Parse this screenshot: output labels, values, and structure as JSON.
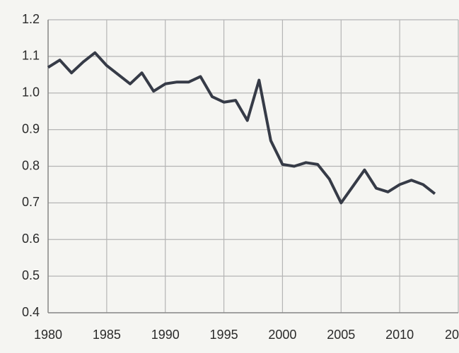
{
  "chart_data": {
    "type": "line",
    "x": [
      1980,
      1981,
      1982,
      1983,
      1984,
      1985,
      1986,
      1987,
      1988,
      1989,
      1990,
      1991,
      1992,
      1993,
      1994,
      1995,
      1996,
      1997,
      1998,
      1999,
      2000,
      2001,
      2002,
      2003,
      2004,
      2005,
      2006,
      2007,
      2008,
      2009,
      2010,
      2011,
      2012,
      2013
    ],
    "values": [
      1.07,
      1.09,
      1.055,
      1.085,
      1.11,
      1.075,
      1.05,
      1.025,
      1.055,
      1.005,
      1.025,
      1.03,
      1.03,
      1.045,
      0.99,
      0.975,
      0.98,
      0.925,
      1.035,
      0.87,
      0.805,
      0.8,
      0.81,
      0.805,
      0.765,
      0.7,
      0.745,
      0.79,
      0.74,
      0.73,
      0.75,
      0.762,
      0.75,
      0.725
    ],
    "color": "#363b47",
    "xlim": [
      1980,
      2015
    ],
    "xticks": [
      1980,
      1985,
      1990,
      1995,
      2000,
      2005,
      2010,
      {
        "value": 2015,
        "label": "20"
      }
    ],
    "ylim": [
      0.4,
      1.2
    ],
    "yticks": [
      0.4,
      0.5,
      0.6,
      0.7,
      0.8,
      0.9,
      {
        "value": 1,
        "label": "1.0"
      },
      1.1,
      1.2
    ],
    "grid": true
  }
}
